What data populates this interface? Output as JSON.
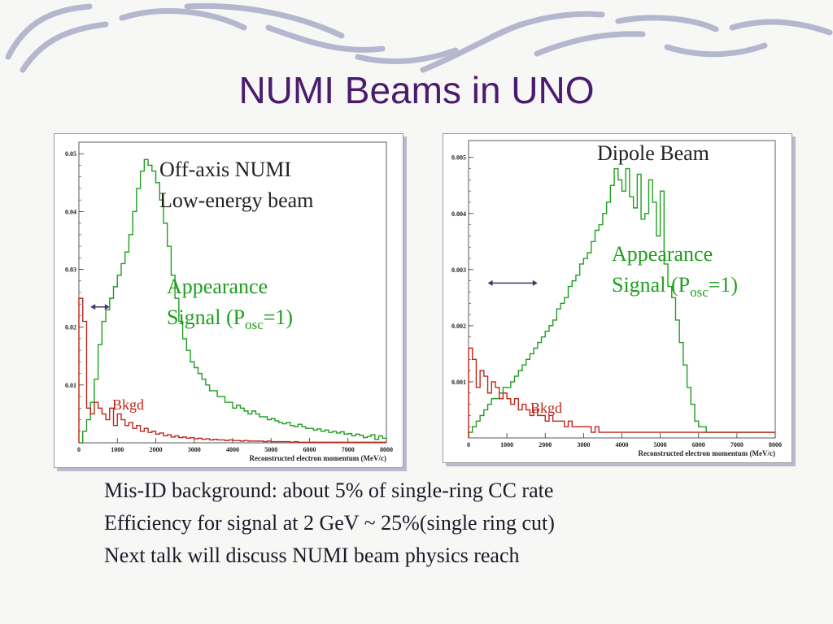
{
  "slide": {
    "title": "NUMI Beams in UNO",
    "bullets": [
      "Mis-ID background: about 5% of single-ring CC rate",
      "Efficiency for signal at 2 GeV ~ 25%(single ring cut)",
      "Next talk will discuss NUMI beam physics reach"
    ],
    "colors": {
      "title": "#4b1b6e",
      "signal": "#1f9e1f",
      "background": "#c0251a",
      "decoration": "#a9acc8"
    }
  },
  "left_labels": {
    "beam_line1": "Off-axis NUMI",
    "beam_line2": "Low-energy beam",
    "signal_line1": "Appearance",
    "signal_prefix": "Signal (P",
    "signal_sub": "osc",
    "signal_suffix": "=1)",
    "bkgd": "Bkgd"
  },
  "right_labels": {
    "beam_line1": "Dipole Beam",
    "signal_line1": "Appearance",
    "signal_prefix": "Signal (P",
    "signal_sub": "osc",
    "signal_suffix": "=1)",
    "bkgd": "Bkgd"
  },
  "chart_data": [
    {
      "type": "line",
      "xlabel": "Reconstructed electron momentum (MeV/c)",
      "xlim": [
        0,
        8000
      ],
      "ylim": [
        0,
        0.052
      ],
      "xticks": [
        0,
        1000,
        2000,
        3000,
        4000,
        5000,
        6000,
        7000,
        8000
      ],
      "xtick_labels": [
        "0",
        "1000",
        "2000",
        "3000",
        "4000",
        "5000",
        "6000",
        "7000",
        "8000"
      ],
      "yticks": [
        0.01,
        0.02,
        0.03,
        0.04,
        0.05
      ],
      "ytick_labels": [
        "0.01",
        "0.02",
        "0.03",
        "0.04",
        "0.05"
      ],
      "series": [
        {
          "color": "#1f9e1f",
          "bin_width": 100,
          "values": [
            0.0,
            0.002,
            0.004,
            0.007,
            0.011,
            0.017,
            0.021,
            0.023,
            0.025,
            0.027,
            0.029,
            0.031,
            0.033,
            0.036,
            0.04,
            0.044,
            0.047,
            0.049,
            0.048,
            0.047,
            0.045,
            0.042,
            0.038,
            0.034,
            0.029,
            0.025,
            0.021,
            0.018,
            0.016,
            0.014,
            0.013,
            0.012,
            0.011,
            0.01,
            0.009,
            0.009,
            0.008,
            0.008,
            0.007,
            0.007,
            0.006,
            0.0065,
            0.006,
            0.0055,
            0.005,
            0.0055,
            0.005,
            0.0045,
            0.0045,
            0.004,
            0.0042,
            0.0038,
            0.0035,
            0.0033,
            0.0035,
            0.003,
            0.0028,
            0.0032,
            0.0028,
            0.0025,
            0.0025,
            0.0022,
            0.0024,
            0.002,
            0.0022,
            0.0018,
            0.002,
            0.0017,
            0.0019,
            0.0015,
            0.0016,
            0.0012,
            0.0015,
            0.0013,
            0.0009,
            0.0011,
            0.0014,
            0.0006,
            0.0012,
            0.0008
          ]
        },
        {
          "color": "#c0251a",
          "bin_width": 100,
          "values": [
            0.025,
            0.021,
            0.006,
            0.005,
            0.007,
            0.006,
            0.005,
            0.004,
            0.006,
            0.003,
            0.005,
            0.004,
            0.003,
            0.0035,
            0.0025,
            0.003,
            0.002,
            0.0025,
            0.0018,
            0.002,
            0.0015,
            0.0017,
            0.0012,
            0.0014,
            0.001,
            0.0012,
            0.0009,
            0.001,
            0.0008,
            0.0009,
            0.0007,
            0.0008,
            0.0006,
            0.0007,
            0.0005,
            0.0006,
            0.0005,
            0.0005,
            0.0004,
            0.0005,
            0.0004,
            0.0004,
            0.0003,
            0.0004,
            0.0003,
            0.0003,
            0.0003,
            0.0003,
            0.0002,
            0.0003,
            0.0002,
            0.0002,
            0.0002,
            0.0002,
            0.0002,
            0.0001,
            0.0002,
            0.0001,
            0.0001,
            0.0001,
            0.0001,
            0.0001,
            0.0001,
            0.0001,
            0.0001,
            0.0001,
            0.0001,
            0.0001,
            0.0001,
            0.0001,
            0.0001,
            0.0001,
            0.0001,
            0.0001,
            0.0001,
            0.0001,
            0.0001,
            0.0001,
            0.0001,
            0.0001
          ]
        }
      ],
      "arrow_x": [
        300,
        800
      ],
      "arrow_y": 0.0235
    },
    {
      "type": "line",
      "xlabel": "Reconstructed electron momentum (MeV/c)",
      "xlim": [
        0,
        8000
      ],
      "ylim": [
        0,
        0.0053
      ],
      "xticks": [
        0,
        1000,
        2000,
        3000,
        4000,
        5000,
        6000,
        7000,
        8000
      ],
      "xtick_labels": [
        "0",
        "1000",
        "2000",
        "3000",
        "4000",
        "5000",
        "6000",
        "7000",
        "8000"
      ],
      "yticks": [
        0.001,
        0.002,
        0.003,
        0.004,
        0.005
      ],
      "ytick_labels": [
        "0.001",
        "0.002",
        "0.003",
        "0.004",
        "0.005"
      ],
      "series": [
        {
          "color": "#1f9e1f",
          "bin_width": 100,
          "values": [
            0.0001,
            0.0002,
            0.0003,
            0.0004,
            0.0005,
            0.0006,
            0.0007,
            0.0007,
            0.0008,
            0.0009,
            0.0009,
            0.001,
            0.0011,
            0.0012,
            0.0013,
            0.0014,
            0.0015,
            0.0016,
            0.0017,
            0.0018,
            0.0019,
            0.002,
            0.0021,
            0.0023,
            0.0024,
            0.0025,
            0.0027,
            0.0028,
            0.0029,
            0.0031,
            0.0032,
            0.0033,
            0.0035,
            0.0037,
            0.0038,
            0.004,
            0.0042,
            0.0045,
            0.0048,
            0.0046,
            0.0044,
            0.0048,
            0.0043,
            0.0041,
            0.0047,
            0.0039,
            0.004,
            0.0046,
            0.0042,
            0.0036,
            0.0044,
            0.0031,
            0.0027,
            0.0025,
            0.0021,
            0.0017,
            0.0013,
            0.0009,
            0.0006,
            0.0003,
            0.0002,
            0.0002,
            0.0001,
            0.0001,
            0.0001,
            0.0001,
            0.0001,
            0.0001,
            0.0001,
            0.0001,
            0.0001,
            0.0001,
            0.0001,
            0.0001,
            0.0001,
            0.0001,
            0.0001,
            0.0001,
            0.0001,
            0.0001
          ]
        },
        {
          "color": "#c0251a",
          "bin_width": 100,
          "values": [
            0.0016,
            0.0014,
            0.0009,
            0.0012,
            0.0011,
            0.0008,
            0.001,
            0.0009,
            0.0007,
            0.0008,
            0.0007,
            0.0006,
            0.0007,
            0.0005,
            0.0006,
            0.0005,
            0.0004,
            0.0005,
            0.0004,
            0.0004,
            0.0003,
            0.0004,
            0.0003,
            0.0003,
            0.0003,
            0.0002,
            0.0003,
            0.0002,
            0.0002,
            0.0002,
            0.0002,
            0.0002,
            0.0001,
            0.0002,
            0.0001,
            0.0001,
            0.0001,
            0.0001,
            0.0001,
            0.0001,
            0.0001,
            0.0001,
            0.0001,
            0.0001,
            0.0001,
            0.0001,
            0.0001,
            0.0001,
            0.0001,
            0.0001,
            0.0001,
            0.0001,
            0.0001,
            0.0001,
            0.0001,
            0.0001,
            0.0001,
            0.0001,
            0.0001,
            0.0001,
            0.0001,
            0.0001,
            0.0001,
            0.0001,
            0.0001,
            0.0001,
            0.0001,
            0.0001,
            0.0001,
            0.0001,
            0.0001,
            0.0001,
            0.0001,
            0.0001,
            0.0001,
            0.0001,
            0.0001,
            0.0001,
            0.0001,
            0.0001
          ]
        }
      ],
      "arrow_x": [
        500,
        1800
      ],
      "arrow_y": 0.00276
    }
  ]
}
